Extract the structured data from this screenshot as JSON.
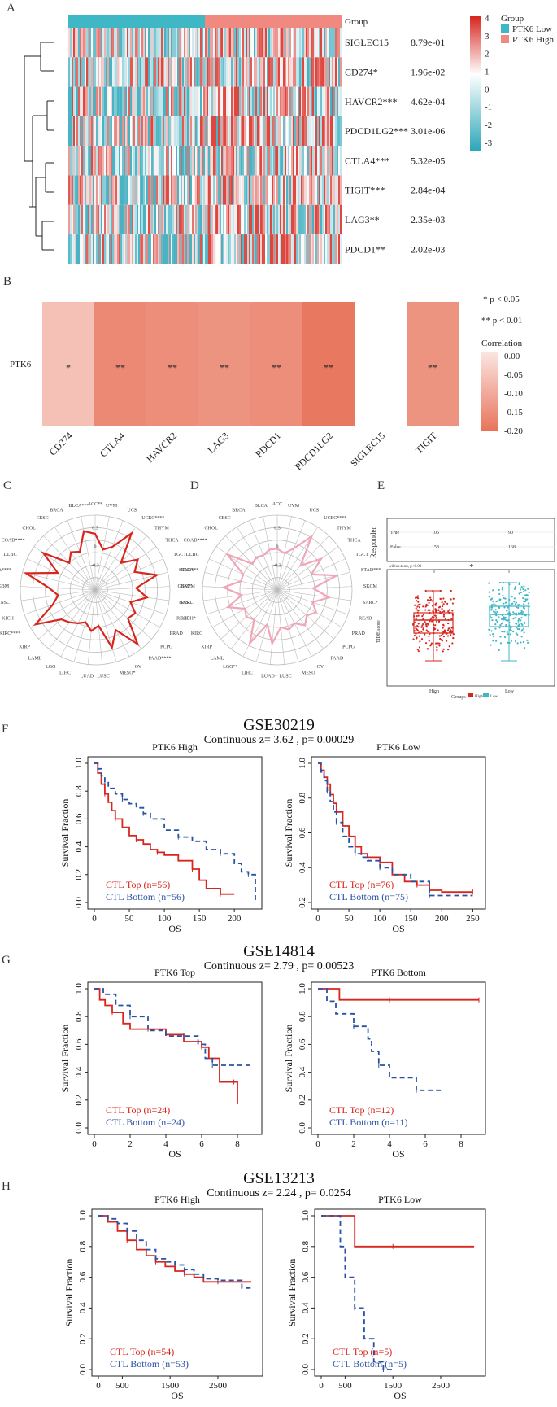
{
  "panel_labels": [
    "A",
    "B",
    "C",
    "D",
    "E",
    "F",
    "G",
    "H"
  ],
  "panel_a": {
    "group_label": "Group",
    "legend": {
      "title": "Group",
      "low": "PTK6 Low",
      "high": "PTK6 High",
      "low_color": "#3fb7c4",
      "high_color": "#f08a80",
      "scale": [
        "4",
        "3",
        "2",
        "1",
        "0",
        "-1",
        "-2",
        "-3"
      ]
    },
    "rows": [
      {
        "gene": "SIGLEC15",
        "p": "8.79e-01"
      },
      {
        "gene": "CD274*",
        "p": "1.96e-02"
      },
      {
        "gene": "HAVCR2***",
        "p": "4.62e-04"
      },
      {
        "gene": "PDCD1LG2***",
        "p": "3.01e-06"
      },
      {
        "gene": "CTLA4***",
        "p": "5.32e-05"
      },
      {
        "gene": "TIGIT***",
        "p": "2.84e-04"
      },
      {
        "gene": "LAG3**",
        "p": "2.35e-03"
      },
      {
        "gene": "PDCD1**",
        "p": "2.02e-03"
      }
    ]
  },
  "panel_b": {
    "row_label": "PTK6",
    "legend_sig1": "* p < 0.05",
    "legend_sig2": "** p < 0.01",
    "legend_title": "Correlation",
    "legend_ticks": [
      "0.00",
      "-0.05",
      "-0.10",
      "-0.15",
      "-0.20"
    ],
    "cells": [
      {
        "gene": "CD274",
        "stars": "*",
        "value": -0.07
      },
      {
        "gene": "CTLA4",
        "stars": "**",
        "value": -0.17
      },
      {
        "gene": "HAVCR2",
        "stars": "**",
        "value": -0.16
      },
      {
        "gene": "LAG3",
        "stars": "**",
        "value": -0.15
      },
      {
        "gene": "PDCD1",
        "stars": "**",
        "value": -0.16
      },
      {
        "gene": "PDCD1LG2",
        "stars": "**",
        "value": -0.2
      },
      {
        "gene": "SIGLEC15",
        "stars": "",
        "value": null
      },
      {
        "gene": "TIGIT",
        "stars": "**",
        "value": -0.15
      }
    ]
  },
  "panel_c": {
    "labels": [
      "ACC**",
      "UVM",
      "UCS",
      "UCEC****",
      "THYM",
      "THCA",
      "TGCT",
      "STAD***",
      "SKCM",
      "SARC",
      "READ",
      "PRAD",
      "PCPG",
      "PAAD****",
      "OV",
      "MESO*",
      "LUSC",
      "LUAD",
      "LIHC",
      "LGG",
      "LAML",
      "KIRP",
      "KIRC****",
      "KICH",
      "HNSC",
      "GBM",
      "ESCA****",
      "DLBC",
      "COAD****",
      "CHOL",
      "CESC",
      "BRCA",
      "BLCA***"
    ],
    "ring_ticks": [
      "0.3",
      "0",
      "-0.3"
    ],
    "color": "#d7261e"
  },
  "panel_d": {
    "labels": [
      "ACC",
      "UVM",
      "UCS",
      "UCEC****",
      "THYM",
      "THCA",
      "TGCT",
      "STAD***",
      "SKCM",
      "SARC*",
      "READ",
      "PRAD",
      "PCPG",
      "PAAD",
      "OV",
      "MESO",
      "LUSC",
      "LUAD*",
      "LIHC",
      "LGG**",
      "LAML",
      "KIRP",
      "KIRC",
      "KICH*",
      "HNSC",
      "GBM*",
      "ESCA",
      "DLBC",
      "COAD****",
      "CHOL",
      "CESC",
      "BRCA",
      "BLCA"
    ],
    "ring_ticks": [
      "0.3",
      "0",
      "-0.3"
    ],
    "color": "#f0a6b8"
  },
  "panel_e": {
    "responder_label": "Responder",
    "rows": [
      {
        "label": "True",
        "high": "105",
        "low": "90"
      },
      {
        "label": "False",
        "high": "153",
        "low": "168"
      }
    ],
    "test_note": "wilcox.tests, p<0.03",
    "y_label": "TIDE score",
    "groups": [
      "High",
      "Low"
    ],
    "legend_title": "Groups",
    "high_color": "#d7261e",
    "low_color": "#3fb7c4",
    "sig": "*"
  },
  "km_sections": [
    {
      "title": "GSE30219",
      "subtitle": "Continuous z= 3.62 , p= 0.00029",
      "plots": [
        {
          "title": "PTK6 High",
          "x_label": "OS",
          "y_label": "Survival Fraction",
          "xticks": [
            "0",
            "50",
            "100",
            "150",
            "200"
          ],
          "yticks": [
            "0.0",
            "0.2",
            "0.4",
            "0.6",
            "0.8",
            "1.0"
          ],
          "legend_top": "CTL Top (n=56)",
          "legend_bottom": "CTL Bottom (n=56)"
        },
        {
          "title": "PTK6 Low",
          "x_label": "OS",
          "y_label": "Survival Fraction",
          "xticks": [
            "0",
            "50",
            "100",
            "150",
            "200",
            "250"
          ],
          "yticks": [
            "0.2",
            "0.4",
            "0.6",
            "0.8",
            "1.0"
          ],
          "legend_top": "CTL Top (n=76)",
          "legend_bottom": "CTL Bottom (n=75)"
        }
      ]
    },
    {
      "title": "GSE14814",
      "subtitle": "Continuous z= 2.79 , p= 0.00523",
      "plots": [
        {
          "title": "PTK6 Top",
          "x_label": "OS",
          "y_label": "Survival Fraction",
          "xticks": [
            "0",
            "2",
            "4",
            "6",
            "8"
          ],
          "yticks": [
            "0.0",
            "0.2",
            "0.4",
            "0.6",
            "0.8",
            "1.0"
          ],
          "legend_top": "CTL Top (n=24)",
          "legend_bottom": "CTL Bottom (n=24)"
        },
        {
          "title": "PTK6 Bottom",
          "x_label": "OS",
          "y_label": "Survival Fraction",
          "xticks": [
            "0",
            "2",
            "4",
            "6",
            "8"
          ],
          "yticks": [
            "0.0",
            "0.2",
            "0.4",
            "0.6",
            "0.8",
            "1.0"
          ],
          "legend_top": "CTL Top (n=12)",
          "legend_bottom": "CTL Bottom (n=11)"
        }
      ]
    },
    {
      "title": "GSE13213",
      "subtitle": "Continuous z= 2.24 , p= 0.0254",
      "plots": [
        {
          "title": "PTK6 High",
          "x_label": "OS",
          "y_label": "Survival Fraction",
          "xticks": [
            "0",
            "500",
            "1500",
            "2500"
          ],
          "yticks": [
            "0.0",
            "0.2",
            "0.4",
            "0.6",
            "0.8",
            "1.0"
          ],
          "legend_top": "CTL Top (n=54)",
          "legend_bottom": "CTL Bottom (n=53)"
        },
        {
          "title": "PTK6 Low",
          "x_label": "OS",
          "y_label": "Survival Fraction",
          "xticks": [
            "0",
            "500",
            "1500",
            "2500"
          ],
          "yticks": [
            "0.0",
            "0.2",
            "0.4",
            "0.6",
            "0.8",
            "1.0"
          ],
          "legend_top": "CTL Top (n=5)",
          "legend_bottom": "CTL Bottom (n=5)"
        }
      ]
    }
  ],
  "chart_data": [
    {
      "type": "heatmap",
      "title": "",
      "rows": [
        "PTK6"
      ],
      "columns": [
        "CD274",
        "CTLA4",
        "HAVCR2",
        "LAG3",
        "PDCD1",
        "PDCD1LG2",
        "SIGLEC15",
        "TIGIT"
      ],
      "values": [
        [
          -0.07,
          -0.17,
          -0.16,
          -0.15,
          -0.16,
          -0.2,
          null,
          -0.15
        ]
      ],
      "colorbar": {
        "label": "Correlation",
        "range": [
          -0.2,
          0.0
        ]
      }
    },
    {
      "type": "line",
      "title": "GSE30219 PTK6 High",
      "xlabel": "OS",
      "ylabel": "Survival Fraction",
      "xlim": [
        0,
        230
      ],
      "ylim": [
        0,
        1
      ],
      "series": [
        {
          "name": "CTL Top (n=56)",
          "x": [
            0,
            5,
            10,
            15,
            20,
            25,
            30,
            40,
            50,
            60,
            70,
            80,
            90,
            100,
            120,
            140,
            150,
            160,
            180,
            200
          ],
          "values": [
            1.0,
            0.93,
            0.85,
            0.78,
            0.72,
            0.66,
            0.6,
            0.54,
            0.48,
            0.45,
            0.42,
            0.38,
            0.36,
            0.34,
            0.3,
            0.24,
            0.16,
            0.1,
            0.06,
            0.06
          ]
        },
        {
          "name": "CTL Bottom (n=56)",
          "x": [
            0,
            5,
            10,
            15,
            20,
            30,
            40,
            50,
            60,
            70,
            80,
            100,
            120,
            140,
            160,
            180,
            200,
            210,
            220,
            230
          ],
          "values": [
            1.0,
            0.96,
            0.91,
            0.87,
            0.82,
            0.78,
            0.74,
            0.71,
            0.68,
            0.64,
            0.6,
            0.52,
            0.47,
            0.44,
            0.38,
            0.35,
            0.28,
            0.22,
            0.2,
            0.0
          ]
        }
      ]
    },
    {
      "type": "line",
      "title": "GSE30219 PTK6 Low",
      "xlabel": "OS",
      "ylabel": "Survival Fraction",
      "xlim": [
        0,
        260
      ],
      "ylim": [
        0.2,
        1
      ],
      "series": [
        {
          "name": "CTL Top (n=76)",
          "x": [
            0,
            5,
            10,
            15,
            20,
            25,
            30,
            40,
            50,
            60,
            70,
            80,
            100,
            120,
            140,
            160,
            180,
            200,
            250
          ],
          "values": [
            1.0,
            0.96,
            0.92,
            0.88,
            0.82,
            0.77,
            0.72,
            0.64,
            0.58,
            0.52,
            0.48,
            0.46,
            0.43,
            0.36,
            0.32,
            0.3,
            0.27,
            0.26,
            0.26
          ]
        },
        {
          "name": "CTL Bottom (n=75)",
          "x": [
            0,
            5,
            10,
            15,
            20,
            25,
            30,
            40,
            50,
            60,
            70,
            80,
            100,
            120,
            150,
            180,
            200,
            250
          ],
          "values": [
            1.0,
            0.95,
            0.9,
            0.84,
            0.78,
            0.72,
            0.66,
            0.58,
            0.52,
            0.48,
            0.46,
            0.44,
            0.4,
            0.36,
            0.32,
            0.24,
            0.24,
            0.24
          ]
        }
      ]
    },
    {
      "type": "line",
      "title": "GSE14814 PTK6 Top",
      "xlabel": "OS",
      "ylabel": "Survival Fraction",
      "xlim": [
        0,
        9
      ],
      "ylim": [
        0,
        1
      ],
      "series": [
        {
          "name": "CTL Top (n=24)",
          "x": [
            0,
            0.3,
            0.6,
            1.0,
            1.6,
            2.0,
            3.0,
            4.0,
            5.0,
            6.0,
            6.4,
            7.0,
            7.8,
            8.0
          ],
          "values": [
            1.0,
            0.92,
            0.88,
            0.83,
            0.75,
            0.71,
            0.71,
            0.67,
            0.62,
            0.58,
            0.5,
            0.33,
            0.33,
            0.17
          ]
        },
        {
          "name": "CTL Bottom (n=24)",
          "x": [
            0,
            0.5,
            1.2,
            2.0,
            3.0,
            4.0,
            5.0,
            5.8,
            6.2,
            6.6,
            7.0,
            8.8
          ],
          "values": [
            1.0,
            0.96,
            0.88,
            0.8,
            0.7,
            0.66,
            0.66,
            0.6,
            0.5,
            0.45,
            0.45,
            0.45
          ]
        }
      ]
    },
    {
      "type": "line",
      "title": "GSE14814 PTK6 Bottom",
      "xlabel": "OS",
      "ylabel": "Survival Fraction",
      "xlim": [
        0,
        9
      ],
      "ylim": [
        0,
        1
      ],
      "series": [
        {
          "name": "CTL Top (n=12)",
          "x": [
            0,
            1.2,
            2.0,
            4.0,
            6.0,
            8.0,
            9.0
          ],
          "values": [
            1.0,
            0.92,
            0.92,
            0.92,
            0.92,
            0.92,
            0.92
          ]
        },
        {
          "name": "CTL Bottom (n=11)",
          "x": [
            0,
            0.5,
            1.0,
            2.0,
            2.8,
            3.0,
            3.4,
            4.0,
            5.0,
            5.5,
            7.0
          ],
          "values": [
            1.0,
            0.91,
            0.82,
            0.73,
            0.64,
            0.55,
            0.45,
            0.36,
            0.36,
            0.27,
            0.27
          ]
        }
      ]
    },
    {
      "type": "line",
      "title": "GSE13213 PTK6 High",
      "xlabel": "OS",
      "ylabel": "Survival Fraction",
      "xlim": [
        0,
        3300
      ],
      "ylim": [
        0,
        1
      ],
      "series": [
        {
          "name": "CTL Top (n=54)",
          "x": [
            0,
            200,
            400,
            600,
            800,
            1000,
            1200,
            1400,
            1600,
            1800,
            2000,
            2200,
            2500,
            3200
          ],
          "values": [
            1.0,
            0.96,
            0.9,
            0.84,
            0.78,
            0.74,
            0.7,
            0.67,
            0.64,
            0.62,
            0.6,
            0.57,
            0.57,
            0.57
          ]
        },
        {
          "name": "CTL Bottom (n=53)",
          "x": [
            0,
            200,
            400,
            600,
            800,
            1000,
            1200,
            1400,
            1600,
            1800,
            2000,
            2200,
            2500,
            3000,
            3200
          ],
          "values": [
            1.0,
            0.98,
            0.95,
            0.9,
            0.84,
            0.78,
            0.72,
            0.7,
            0.68,
            0.65,
            0.62,
            0.59,
            0.58,
            0.53,
            0.53
          ]
        }
      ]
    },
    {
      "type": "line",
      "title": "GSE13213 PTK6 Low",
      "xlabel": "OS",
      "ylabel": "Survival Fraction",
      "xlim": [
        0,
        3300
      ],
      "ylim": [
        0,
        1
      ],
      "series": [
        {
          "name": "CTL Top (n=5)",
          "x": [
            0,
            600,
            700,
            1500,
            3200
          ],
          "values": [
            1.0,
            1.0,
            0.8,
            0.8,
            0.8
          ]
        },
        {
          "name": "CTL Bottom (n=5)",
          "x": [
            0,
            400,
            500,
            700,
            900,
            1100,
            1300,
            1500
          ],
          "values": [
            1.0,
            0.8,
            0.6,
            0.4,
            0.2,
            0.05,
            0.0,
            0.0
          ]
        }
      ]
    }
  ]
}
